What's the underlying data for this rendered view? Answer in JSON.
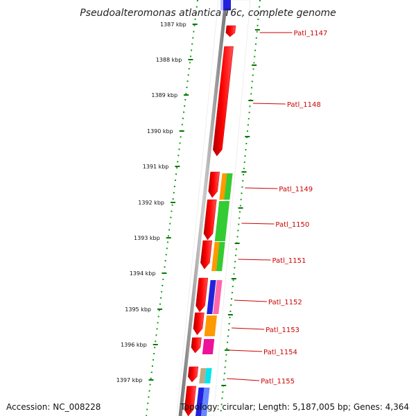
{
  "title": "Pseudoalteromonas atlantica T6c, complete genome",
  "scale": {
    "ticks": [
      "1387 kbp",
      "1388 kbp",
      "1389 kbp",
      "1390 kbp",
      "1391 kbp",
      "1392 kbp",
      "1393 kbp",
      "1394 kbp",
      "1395 kbp",
      "1396 kbp",
      "1397 kbp"
    ]
  },
  "genes": [
    "Patl_1147",
    "Patl_1148",
    "Patl_1149",
    "Patl_1150",
    "Patl_1151",
    "Patl_1152",
    "Patl_1153",
    "Patl_1154",
    "Patl_1155"
  ],
  "footer": {
    "accession": "Accession: NC_008228",
    "topology": "Topology: circular; Length: 5,187,005 bp; Genes: 4,364"
  },
  "colors": {
    "gene_arrow": "#ff0000",
    "label": "#cc0000",
    "scale_tick": "#007700",
    "backbone": "#888888",
    "cog_orange": "#ff9900",
    "cog_green": "#33cc33",
    "cog_blue": "#2222dd",
    "cog_pink": "#ff66aa",
    "cog_magenta": "#ee1199",
    "cog_cyan": "#00e5ee",
    "cog_tan": "#bbaa88"
  }
}
